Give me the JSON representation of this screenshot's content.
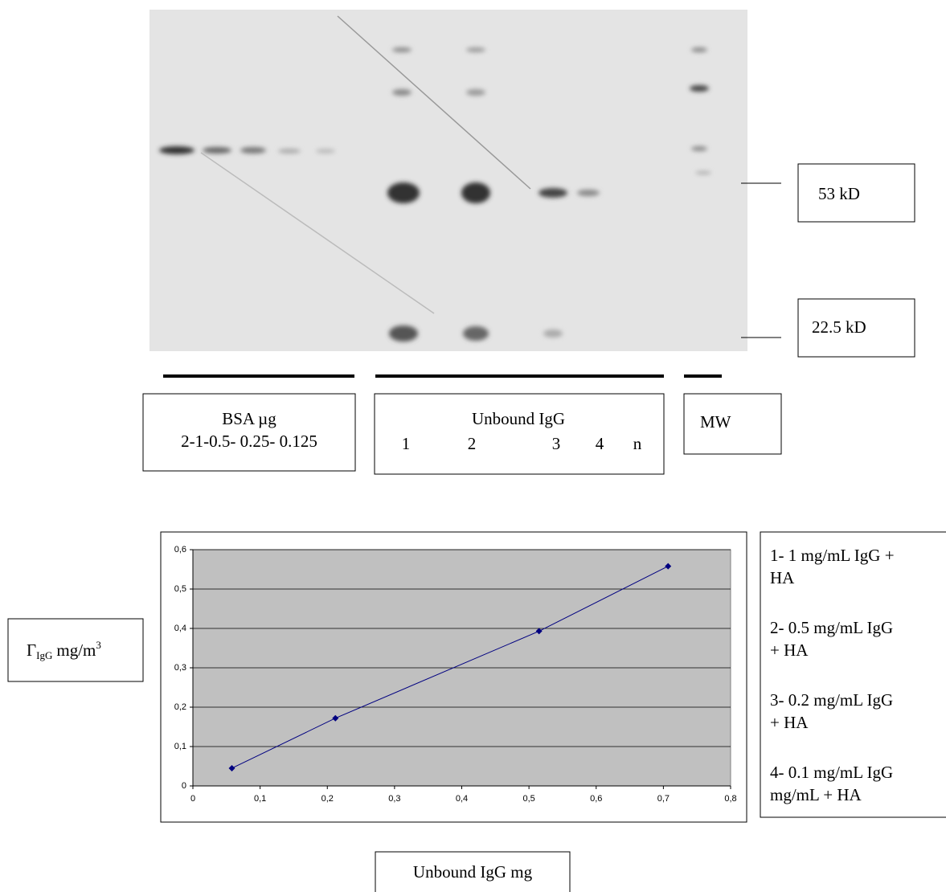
{
  "gel": {
    "markers": [
      "53 kD",
      "22.5 kD"
    ],
    "groups": {
      "bsa": {
        "title": "BSA µg",
        "lanes": "2-1-0.5- 0.25- 0.125"
      },
      "unbound": {
        "title": "Unbound IgG",
        "lanes": [
          "1",
          "2",
          "3",
          "4",
          "n"
        ]
      },
      "mw": {
        "title": "MW"
      }
    }
  },
  "chart_data": {
    "type": "line",
    "x": [
      0.058,
      0.212,
      0.515,
      0.707
    ],
    "series": [
      {
        "color": "#000080",
        "values": [
          0.045,
          0.172,
          0.393,
          0.558
        ]
      }
    ],
    "xlim": [
      0,
      0.8
    ],
    "ylim": [
      0,
      0.6
    ],
    "xticks": [
      0,
      {
        "value": 0.1,
        "label": "0,1"
      },
      {
        "value": 0.2,
        "label": "0,2"
      },
      {
        "value": 0.3,
        "label": "0,3"
      },
      {
        "value": 0.4,
        "label": "0,4"
      },
      {
        "value": 0.5,
        "label": "0,5"
      },
      {
        "value": 0.6,
        "label": "0,6"
      },
      {
        "value": 0.7,
        "label": "0,7"
      },
      {
        "value": 0.8,
        "label": "0,8"
      }
    ],
    "yticks": [
      0,
      {
        "value": 0.1,
        "label": "0,1"
      },
      {
        "value": 0.2,
        "label": "0,2"
      },
      {
        "value": 0.3,
        "label": "0,3"
      },
      {
        "value": 0.4,
        "label": "0,4"
      },
      {
        "value": 0.5,
        "label": "0,5"
      },
      {
        "value": 0.6,
        "label": "0,6"
      }
    ],
    "grid": true,
    "plot_background": "#c0c0c0",
    "x_label": "Unbound IgG mg",
    "y_label": {
      "symbol": "Γ",
      "subscript": "IgG",
      "unit": "mg/m",
      "superscript": "3"
    },
    "legend": [
      [
        "1- 1 mg/mL IgG +",
        "HA"
      ],
      [
        "2- 0.5 mg/mL IgG",
        "+ HA"
      ],
      [
        "3- 0.2 mg/mL IgG",
        "+ HA"
      ],
      [
        "4- 0.1 mg/mL IgG",
        "mg/mL + HA"
      ]
    ]
  }
}
